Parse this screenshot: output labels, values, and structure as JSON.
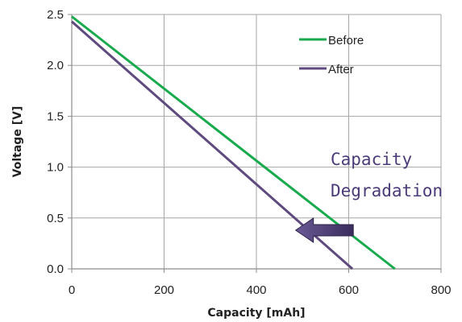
{
  "chart_data": {
    "type": "line",
    "xlabel": "Capacity [mAh]",
    "ylabel": "Voltage [V]",
    "xlim": [
      0,
      800
    ],
    "ylim": [
      0,
      2.5
    ],
    "xticks": [
      0,
      200,
      400,
      600,
      800
    ],
    "yticks": [
      0.0,
      0.5,
      1.0,
      1.5,
      2.0,
      2.5
    ],
    "xtick_labels": [
      "0",
      "200",
      "400",
      "600",
      "800"
    ],
    "ytick_labels": [
      "0.0",
      "0.5",
      "1.0",
      "1.5",
      "2.0",
      "2.5"
    ],
    "grid": true,
    "legend_position": "top-right",
    "series": [
      {
        "name": "Before",
        "color": "#1aaa4e",
        "points": [
          [
            0,
            2.48
          ],
          [
            700,
            0.0
          ]
        ]
      },
      {
        "name": "After",
        "color": "#5e4a7e",
        "points": [
          [
            0,
            2.43
          ],
          [
            608,
            0.0
          ]
        ]
      }
    ],
    "annotation": {
      "lines": [
        "Capacity",
        "Degradation"
      ],
      "text_color": "#4b3b78",
      "arrow_color": "#5e4a7e",
      "arrow_from": [
        610,
        0.38
      ],
      "arrow_to": [
        485,
        0.38
      ]
    }
  }
}
